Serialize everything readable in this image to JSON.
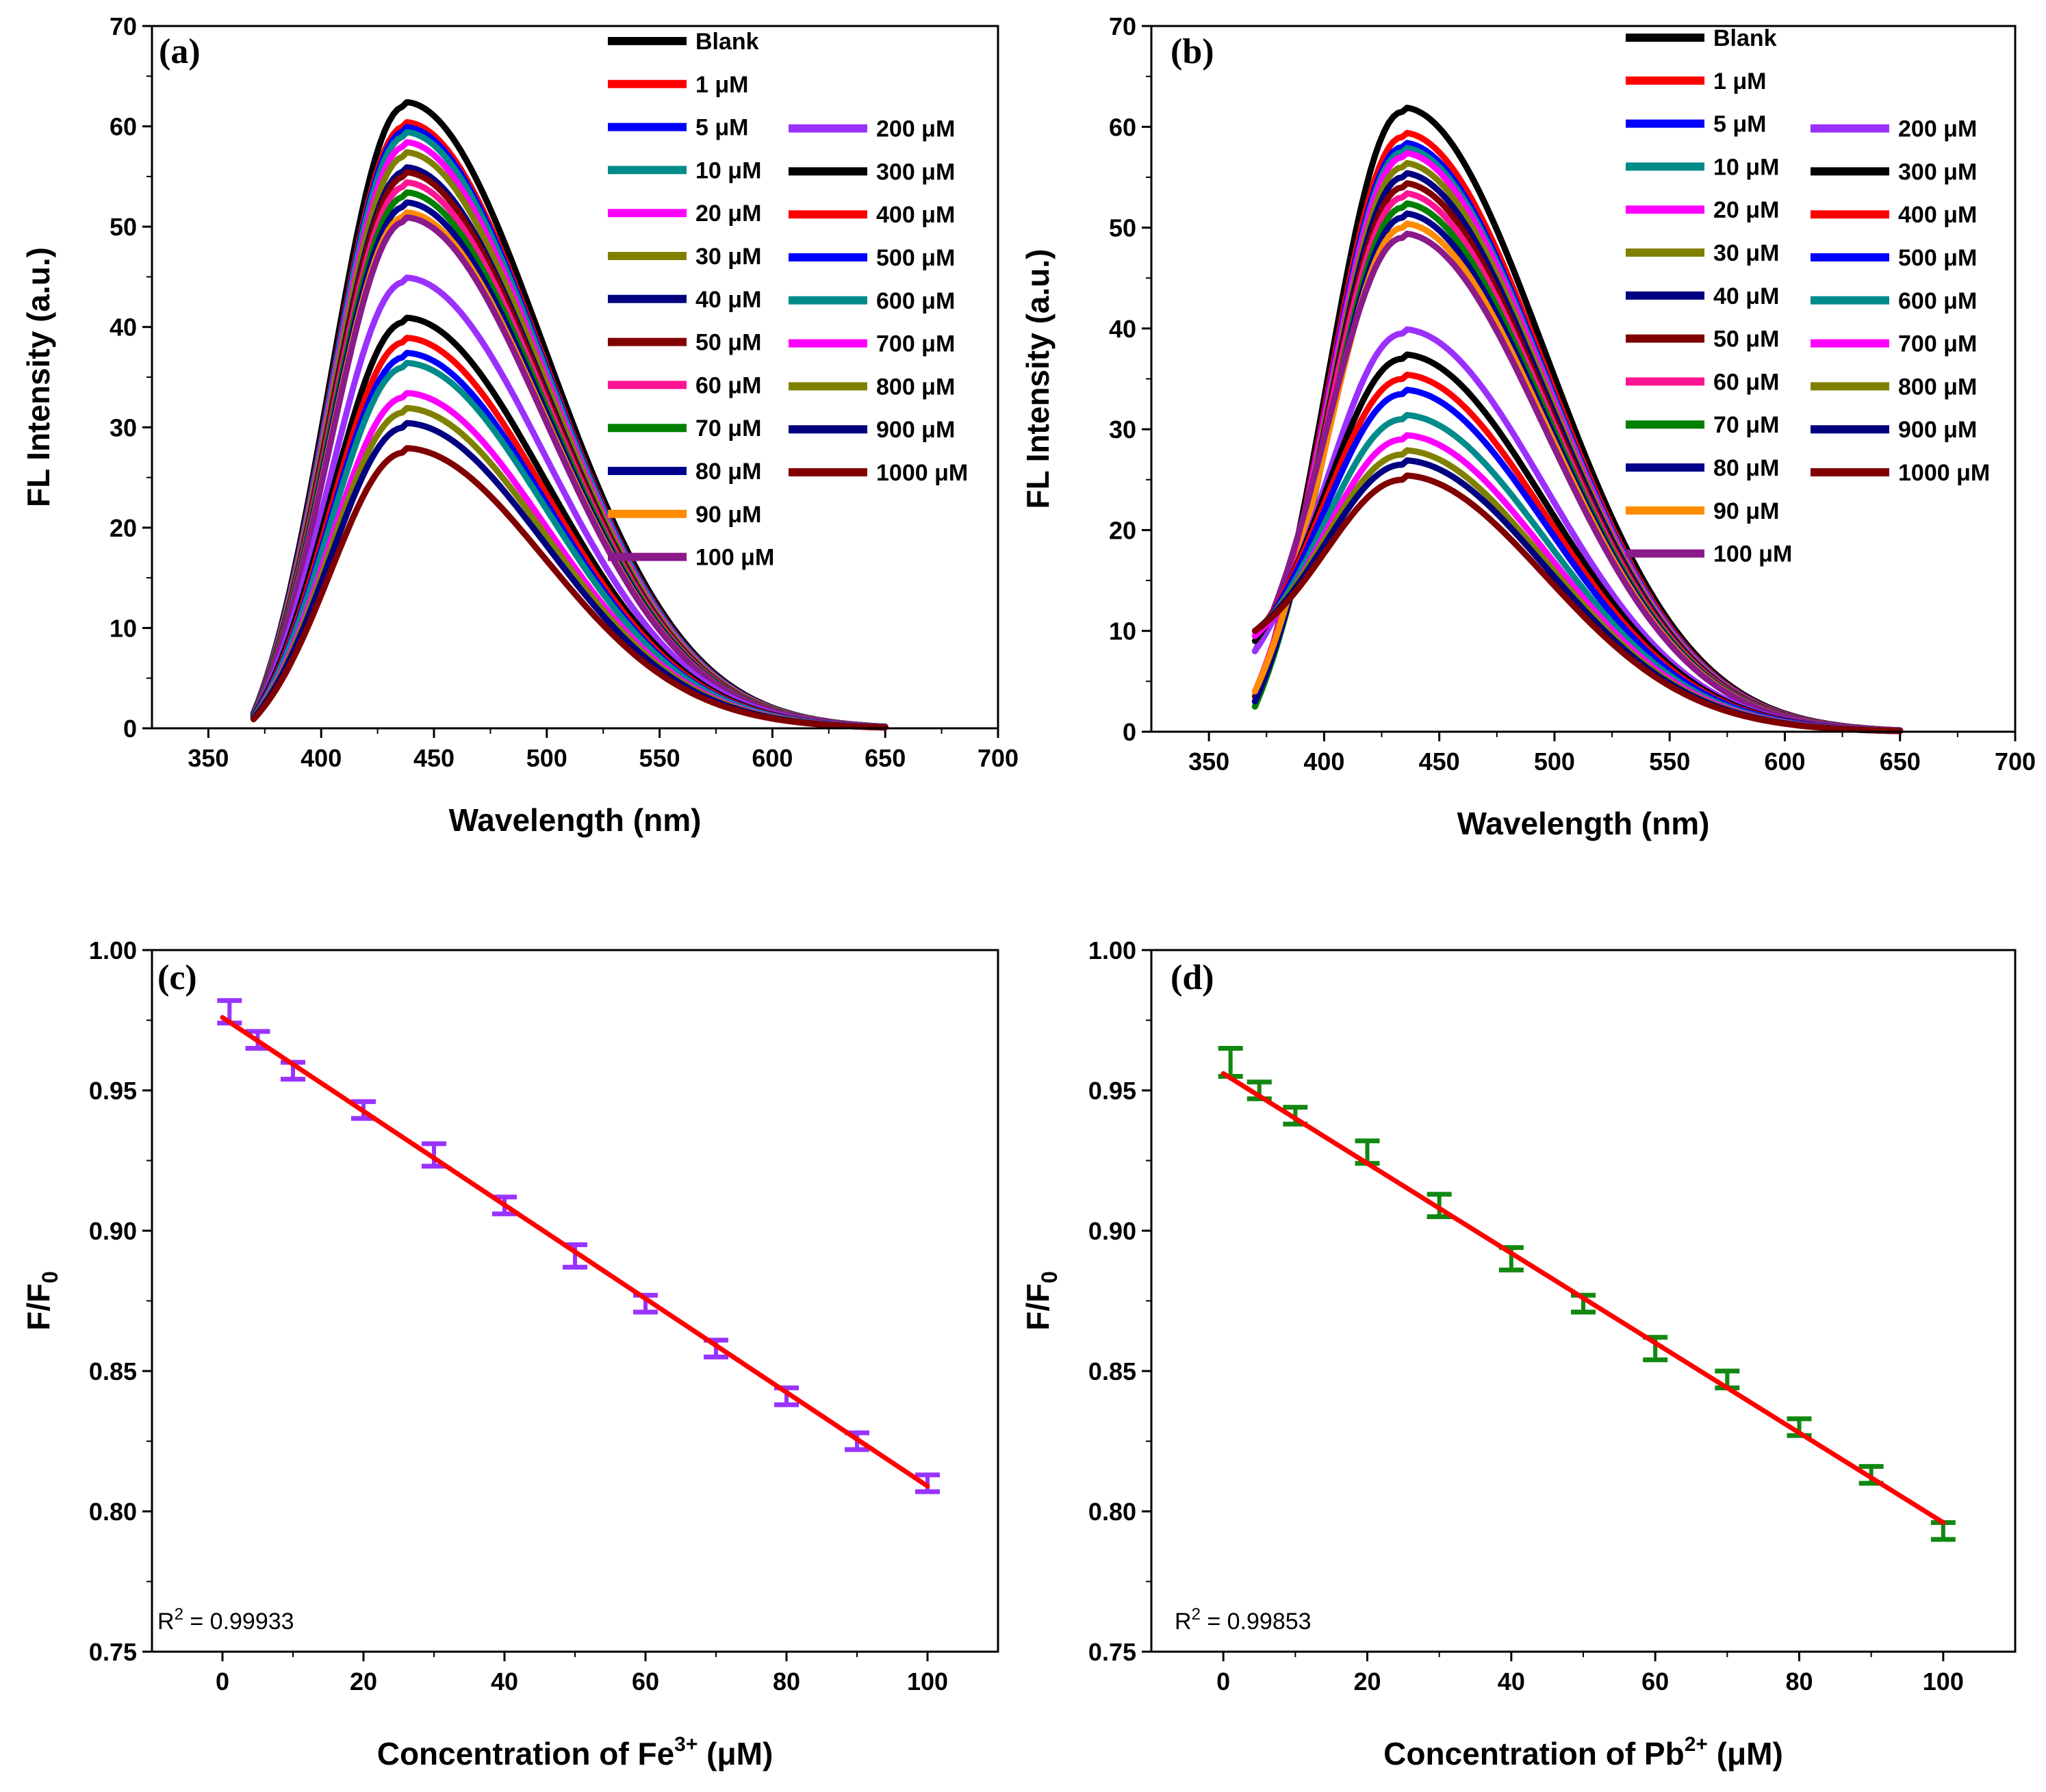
{
  "colors": {
    "fit_line": "#ff0000",
    "errorbar_c": "#9933ff",
    "errorbar_d": "#118811",
    "series_palette": [
      "#000000",
      "#ff0000",
      "#0000ff",
      "#008b8b",
      "#ff00ff",
      "#808000",
      "#000080",
      "#800000",
      "#ff1493",
      "#008000",
      "#00008b",
      "#ff8c00",
      "#8b1a8b",
      "#9b30ff",
      "#000000",
      "#ff0000",
      "#0000ff",
      "#008b8b",
      "#ff00ff",
      "#808000",
      "#000080",
      "#800000"
    ]
  },
  "chart_data": [
    {
      "panel": "(a)",
      "type": "line",
      "xlabel": "Wavelength (nm)",
      "ylabel": "FL Intensity (a.u.)",
      "xlim": [
        325,
        700
      ],
      "ylim": [
        0,
        70
      ],
      "xticks": [
        "350",
        "400",
        "450",
        "500",
        "550",
        "600",
        "650",
        "700"
      ],
      "yticks": [
        "0",
        "10",
        "20",
        "30",
        "40",
        "50",
        "60",
        "70"
      ],
      "x_range": [
        370,
        650
      ],
      "peak_x": 437,
      "series": [
        {
          "name": "Blank",
          "peak": 62,
          "start": 1.5
        },
        {
          "name": "1 μM",
          "peak": 60,
          "start": 1.5
        },
        {
          "name": "5 μM",
          "peak": 59.5,
          "start": 1.5
        },
        {
          "name": "10 μM",
          "peak": 59,
          "start": 1.5
        },
        {
          "name": "20 μM",
          "peak": 58,
          "start": 1.5
        },
        {
          "name": "30 μM",
          "peak": 57,
          "start": 1.5
        },
        {
          "name": "40 μM",
          "peak": 55.5,
          "start": 1.5
        },
        {
          "name": "50 μM",
          "peak": 55,
          "start": 1.4
        },
        {
          "name": "60 μM",
          "peak": 54,
          "start": 1.4
        },
        {
          "name": "70 μM",
          "peak": 53,
          "start": 1.4
        },
        {
          "name": "80 μM",
          "peak": 52,
          "start": 1.3
        },
        {
          "name": "90 μM",
          "peak": 51,
          "start": 1.3
        },
        {
          "name": "100 μM",
          "peak": 50.5,
          "start": 1.3
        },
        {
          "name": "200 μM",
          "peak": 44.5,
          "start": 1.2
        },
        {
          "name": "300 μM",
          "peak": 40.5,
          "start": 1.2
        },
        {
          "name": "400 μM",
          "peak": 38.5,
          "start": 1.1
        },
        {
          "name": "500 μM",
          "peak": 37,
          "start": 1.1
        },
        {
          "name": "600 μM",
          "peak": 36,
          "start": 1.1
        },
        {
          "name": "700 μM",
          "peak": 33,
          "start": 1.0
        },
        {
          "name": "800 μM",
          "peak": 31.5,
          "start": 1.0
        },
        {
          "name": "900 μM",
          "peak": 30,
          "start": 1.0
        },
        {
          "name": "1000 μM",
          "peak": 27.5,
          "start": 0.9
        }
      ]
    },
    {
      "panel": "(b)",
      "type": "line",
      "xlabel": "Wavelength (nm)",
      "ylabel": "FL Intensity (a.u.)",
      "xlim": [
        325,
        700
      ],
      "ylim": [
        0,
        70
      ],
      "xticks": [
        "350",
        "400",
        "450",
        "500",
        "550",
        "600",
        "650",
        "700"
      ],
      "yticks": [
        "0",
        "10",
        "20",
        "30",
        "40",
        "50",
        "60",
        "70"
      ],
      "x_range": [
        370,
        650
      ],
      "peak_x": 434,
      "series": [
        {
          "name": "Blank",
          "peak": 61.5,
          "start": 3.0
        },
        {
          "name": "1 μM",
          "peak": 59,
          "start": 3.0
        },
        {
          "name": "5 μM",
          "peak": 58,
          "start": 3.0
        },
        {
          "name": "10 μM",
          "peak": 57.5,
          "start": 2.5
        },
        {
          "name": "20 μM",
          "peak": 57,
          "start": 3.5
        },
        {
          "name": "30 μM",
          "peak": 56,
          "start": 3.0
        },
        {
          "name": "40 μM",
          "peak": 55,
          "start": 3.0
        },
        {
          "name": "50 μM",
          "peak": 54,
          "start": 3.5
        },
        {
          "name": "60 μM",
          "peak": 53,
          "start": 4.0
        },
        {
          "name": "70 μM",
          "peak": 52,
          "start": 2.5
        },
        {
          "name": "80 μM",
          "peak": 51,
          "start": 3.0
        },
        {
          "name": "90 μM",
          "peak": 50,
          "start": 4.0
        },
        {
          "name": "100 μM",
          "peak": 49,
          "start": 8.0
        },
        {
          "name": "200 μM",
          "peak": 39.5,
          "start": 8.0
        },
        {
          "name": "300 μM",
          "peak": 37,
          "start": 9.0
        },
        {
          "name": "400 μM",
          "peak": 35,
          "start": 9.5
        },
        {
          "name": "500 μM",
          "peak": 33.5,
          "start": 9.5
        },
        {
          "name": "600 μM",
          "peak": 31,
          "start": 9.5
        },
        {
          "name": "700 μM",
          "peak": 29,
          "start": 9.5
        },
        {
          "name": "800 μM",
          "peak": 27.5,
          "start": 10.0
        },
        {
          "name": "900 μM",
          "peak": 26.5,
          "start": 10.0
        },
        {
          "name": "1000 μM",
          "peak": 25,
          "start": 10.0
        }
      ]
    },
    {
      "panel": "(c)",
      "type": "scatter",
      "xlabel_main": "Concentration of Fe",
      "xlabel_sup": "3+",
      "xlabel_end": " (μM)",
      "ylabel_main": "F/F",
      "ylabel_sub": "0",
      "xlim": [
        -10,
        110
      ],
      "ylim": [
        0.75,
        1.0
      ],
      "xticks": [
        "0",
        "20",
        "40",
        "60",
        "80",
        "100"
      ],
      "yticks": [
        "0.75",
        "0.80",
        "0.85",
        "0.90",
        "0.95",
        "1.00"
      ],
      "x": [
        1,
        5,
        10,
        20,
        30,
        40,
        50,
        60,
        70,
        80,
        90,
        100
      ],
      "y": [
        0.978,
        0.968,
        0.957,
        0.943,
        0.927,
        0.909,
        0.891,
        0.874,
        0.858,
        0.841,
        0.825,
        0.81
      ],
      "err": [
        0.004,
        0.003,
        0.003,
        0.003,
        0.004,
        0.003,
        0.004,
        0.003,
        0.003,
        0.003,
        0.003,
        0.003
      ],
      "fit": {
        "x": [
          0,
          100
        ],
        "y": [
          0.976,
          0.809
        ]
      },
      "r2_prefix": "R",
      "r2_sup": "2",
      "r2_value": " = 0.99933"
    },
    {
      "panel": "(d)",
      "type": "scatter",
      "xlabel_main": "Concentration of Pb",
      "xlabel_sup": "2+",
      "xlabel_end": " (μM)",
      "ylabel_main": "F/F",
      "ylabel_sub": "0",
      "xlim": [
        -10,
        110
      ],
      "ylim": [
        0.75,
        1.0
      ],
      "xticks": [
        "0",
        "20",
        "40",
        "60",
        "80",
        "100"
      ],
      "yticks": [
        "0.75",
        "0.80",
        "0.85",
        "0.90",
        "0.95",
        "1.00"
      ],
      "x": [
        1,
        5,
        10,
        20,
        30,
        40,
        50,
        60,
        70,
        80,
        90,
        100
      ],
      "y": [
        0.96,
        0.95,
        0.941,
        0.928,
        0.909,
        0.89,
        0.874,
        0.858,
        0.847,
        0.83,
        0.813,
        0.793
      ],
      "err": [
        0.005,
        0.003,
        0.003,
        0.004,
        0.004,
        0.004,
        0.003,
        0.004,
        0.003,
        0.003,
        0.003,
        0.003
      ],
      "fit": {
        "x": [
          0,
          100
        ],
        "y": [
          0.956,
          0.796
        ]
      },
      "r2_prefix": "R",
      "r2_sup": "2",
      "r2_value": " = 0.99853"
    }
  ]
}
